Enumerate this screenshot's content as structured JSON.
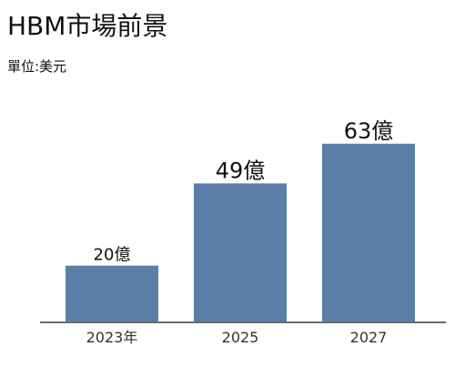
{
  "chart_data": {
    "type": "bar",
    "title": "HBM市場前景",
    "subtitle": "單位:美元",
    "categories": [
      "2023年",
      "2025",
      "2027"
    ],
    "values": [
      20,
      49,
      63
    ],
    "data_labels": [
      "20億",
      "49億",
      "63億"
    ],
    "ylim": [
      0,
      70
    ],
    "grid": false,
    "legend": "none",
    "colors": {
      "bar": "#5b7fa8",
      "baseline": "#6b6b6b"
    }
  }
}
